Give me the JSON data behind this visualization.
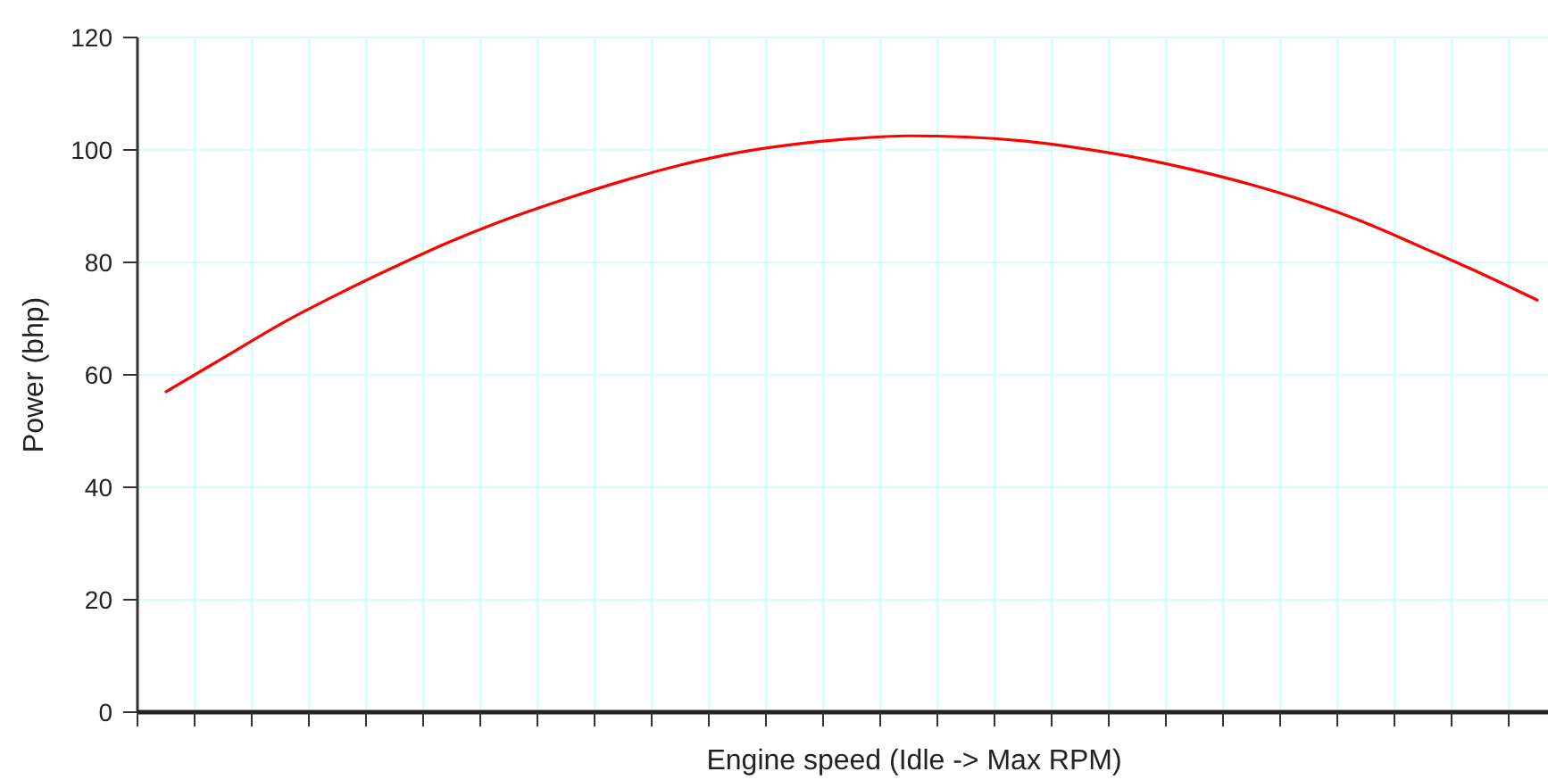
{
  "chart_data": {
    "type": "line",
    "xlabel": "Engine speed (Idle -> Max RPM)",
    "ylabel": "Power (bhp)",
    "categories": [
      null,
      null,
      null,
      null,
      null,
      null,
      null,
      null,
      null,
      null,
      null,
      null,
      null,
      null,
      null,
      null,
      null,
      null,
      null,
      null,
      null,
      null,
      null,
      null,
      null
    ],
    "series": [
      {
        "color": "#ff0000",
        "values": [
          57,
          63,
          69,
          74.3,
          79.2,
          83.8,
          87.8,
          91.3,
          94.5,
          97.3,
          99.5,
          101,
          102,
          102.5,
          102.3,
          101.6,
          100.3,
          98.6,
          96.4,
          93.8,
          90.7,
          87,
          82.6,
          78.1,
          73.3
        ]
      }
    ],
    "ylim": [
      0,
      120
    ],
    "yticks": [
      0,
      20,
      40,
      60,
      80,
      100,
      120
    ],
    "grid": true,
    "tick_labels": "y"
  }
}
